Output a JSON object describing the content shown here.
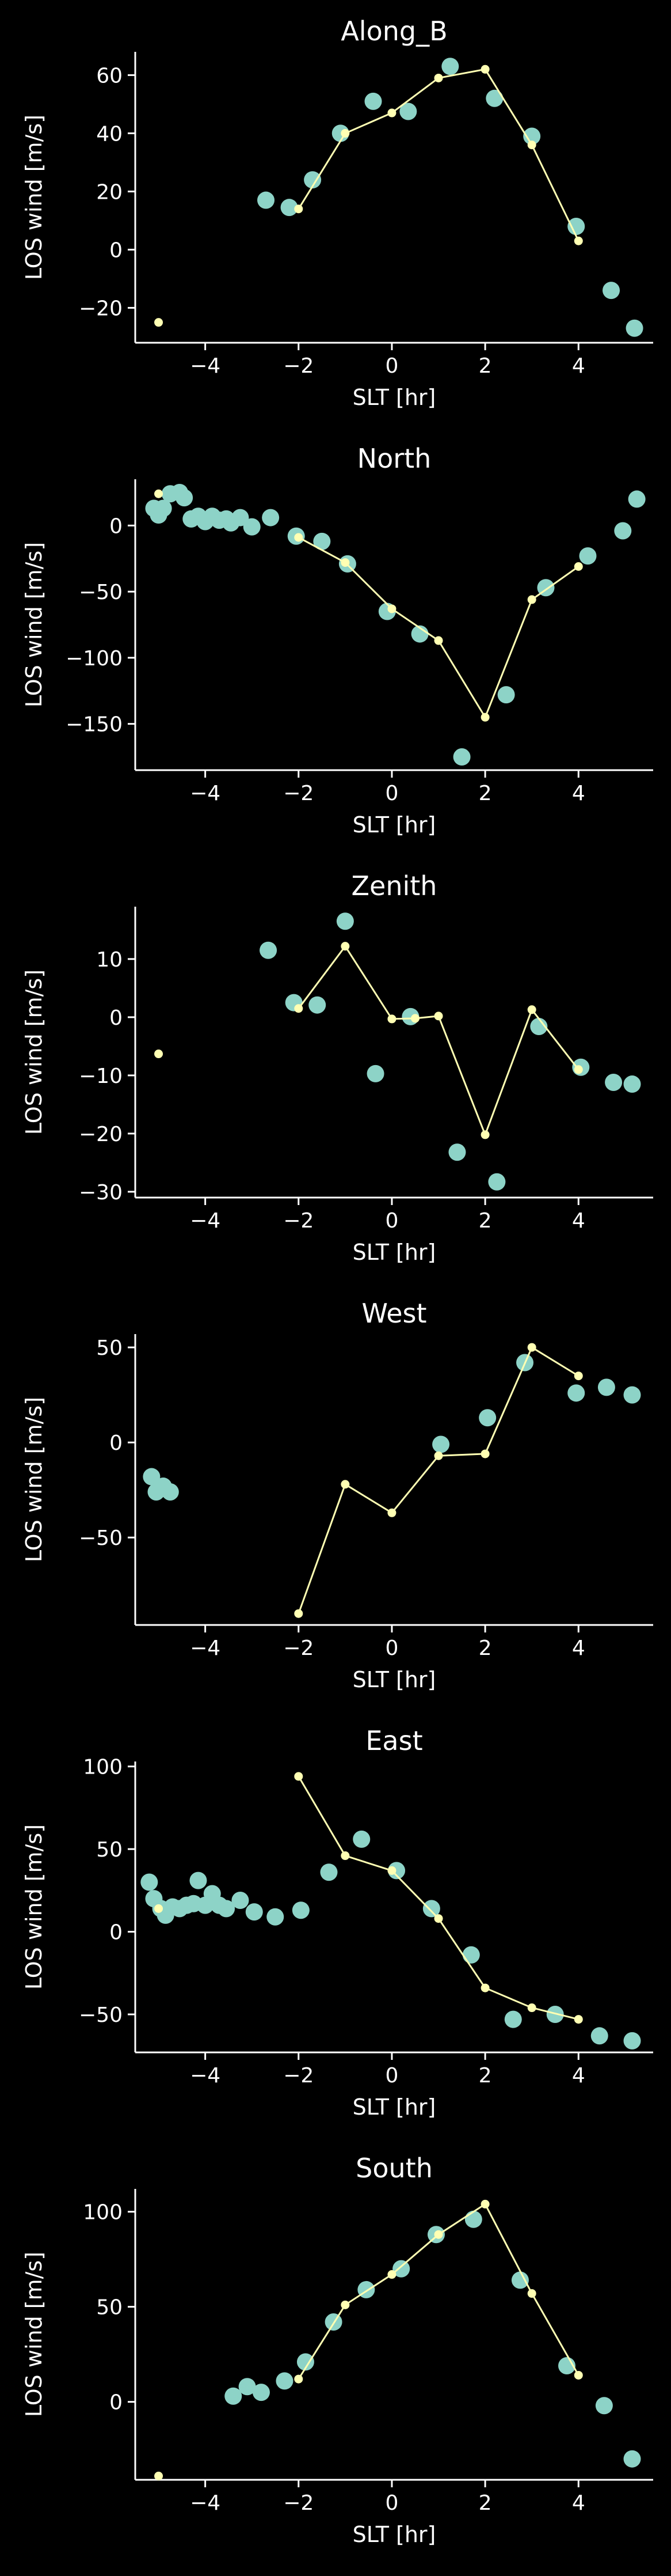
{
  "chart_data": [
    {
      "type": "scatter",
      "title": "Along_B",
      "xlabel": "SLT [hr]",
      "ylabel": "LOS wind [m/s]",
      "xlim": [
        -5.5,
        5.6
      ],
      "ylim": [
        -32,
        68
      ],
      "xticks": [
        -4,
        -2,
        0,
        2,
        4
      ],
      "yticks": [
        -20,
        0,
        20,
        40,
        60
      ],
      "scatter_series": {
        "color": "#8dd3c7",
        "points": [
          [
            -2.7,
            17
          ],
          [
            -2.2,
            14.5
          ],
          [
            -1.7,
            24
          ],
          [
            -1.1,
            40
          ],
          [
            -0.4,
            51
          ],
          [
            0.35,
            47.5
          ],
          [
            1.25,
            63
          ],
          [
            2.2,
            52
          ],
          [
            3.0,
            39
          ],
          [
            3.95,
            8
          ],
          [
            4.7,
            -14
          ],
          [
            5.2,
            -27
          ]
        ]
      },
      "line_series": {
        "color": "#ffffb3",
        "points": [
          [
            -2,
            14
          ],
          [
            -1,
            40
          ],
          [
            0,
            47
          ],
          [
            1,
            59
          ],
          [
            2,
            62
          ],
          [
            3,
            36
          ],
          [
            4,
            3
          ]
        ]
      },
      "extra_points": [
        [
          -5,
          -25
        ]
      ]
    },
    {
      "type": "scatter",
      "title": "North",
      "xlabel": "SLT [hr]",
      "ylabel": "LOS wind [m/s]",
      "xlim": [
        -5.5,
        5.6
      ],
      "ylim": [
        -185,
        35
      ],
      "xticks": [
        -4,
        -2,
        0,
        2,
        4
      ],
      "yticks": [
        -150,
        -100,
        -50,
        0
      ],
      "scatter_series": {
        "color": "#8dd3c7",
        "points": [
          [
            -5.1,
            13
          ],
          [
            -5.0,
            8
          ],
          [
            -4.9,
            13
          ],
          [
            -4.75,
            24
          ],
          [
            -4.55,
            25
          ],
          [
            -4.45,
            21
          ],
          [
            -4.3,
            5
          ],
          [
            -4.15,
            7
          ],
          [
            -4.0,
            3
          ],
          [
            -3.85,
            7
          ],
          [
            -3.7,
            4
          ],
          [
            -3.55,
            5
          ],
          [
            -3.45,
            2
          ],
          [
            -3.25,
            6
          ],
          [
            -3.0,
            -1
          ],
          [
            -2.6,
            6
          ],
          [
            -2.05,
            -8
          ],
          [
            -1.5,
            -12
          ],
          [
            -0.95,
            -29
          ],
          [
            -0.1,
            -65
          ],
          [
            0.6,
            -82
          ],
          [
            1.5,
            -175
          ],
          [
            2.45,
            -128
          ],
          [
            3.3,
            -47
          ],
          [
            4.2,
            -23
          ],
          [
            4.95,
            -4
          ],
          [
            5.25,
            20
          ]
        ]
      },
      "line_series": {
        "color": "#ffffb3",
        "points": [
          [
            -2,
            -9
          ],
          [
            -1,
            -28
          ],
          [
            0,
            -63
          ],
          [
            1,
            -87
          ],
          [
            2,
            -145
          ],
          [
            3,
            -56
          ],
          [
            4,
            -31
          ]
        ]
      },
      "extra_points": [
        [
          -5,
          24
        ]
      ]
    },
    {
      "type": "scatter",
      "title": "Zenith",
      "xlabel": "SLT [hr]",
      "ylabel": "LOS wind [m/s]",
      "xlim": [
        -5.5,
        5.6
      ],
      "ylim": [
        -31,
        19
      ],
      "xticks": [
        -4,
        -2,
        0,
        2,
        4
      ],
      "yticks": [
        -30,
        -20,
        -10,
        0,
        10
      ],
      "scatter_series": {
        "color": "#8dd3c7",
        "points": [
          [
            -2.65,
            11.5
          ],
          [
            -2.1,
            2.5
          ],
          [
            -1.6,
            2.1
          ],
          [
            -1.0,
            16.5
          ],
          [
            -0.35,
            -9.7
          ],
          [
            0.4,
            0.1
          ],
          [
            1.4,
            -23.2
          ],
          [
            2.25,
            -28.3
          ],
          [
            3.15,
            -1.6
          ],
          [
            4.05,
            -8.6
          ],
          [
            4.75,
            -11.2
          ],
          [
            5.15,
            -11.5
          ]
        ]
      },
      "line_series": {
        "color": "#ffffb3",
        "points": [
          [
            -2,
            1.5
          ],
          [
            -1,
            12.2
          ],
          [
            0,
            -0.3
          ],
          [
            0.5,
            -0.2
          ],
          [
            1,
            0.2
          ],
          [
            2,
            -20.2
          ],
          [
            3,
            1.3
          ],
          [
            4,
            -9
          ]
        ]
      },
      "extra_points": [
        [
          -5,
          -6.3
        ]
      ]
    },
    {
      "type": "scatter",
      "title": "West",
      "xlabel": "SLT [hr]",
      "ylabel": "LOS wind [m/s]",
      "xlim": [
        -5.5,
        5.6
      ],
      "ylim": [
        -96,
        57
      ],
      "xticks": [
        -4,
        -2,
        0,
        2,
        4
      ],
      "yticks": [
        -50,
        0,
        50
      ],
      "scatter_series": {
        "color": "#8dd3c7",
        "points": [
          [
            -5.15,
            -18
          ],
          [
            -5.05,
            -26
          ],
          [
            -4.9,
            -23
          ],
          [
            -4.75,
            -26
          ],
          [
            1.05,
            -1
          ],
          [
            2.05,
            13
          ],
          [
            2.85,
            42
          ],
          [
            3.95,
            26
          ],
          [
            4.6,
            29
          ],
          [
            5.15,
            25
          ]
        ]
      },
      "line_series": {
        "color": "#ffffb3",
        "points": [
          [
            -2,
            -90
          ],
          [
            -1,
            -22
          ],
          [
            0,
            -37
          ],
          [
            1,
            -7
          ],
          [
            2,
            -6
          ],
          [
            3,
            50
          ],
          [
            4,
            35
          ]
        ]
      },
      "extra_points": []
    },
    {
      "type": "scatter",
      "title": "East",
      "xlabel": "SLT [hr]",
      "ylabel": "LOS wind [m/s]",
      "xlim": [
        -5.5,
        5.6
      ],
      "ylim": [
        -73,
        103
      ],
      "xticks": [
        -4,
        -2,
        0,
        2,
        4
      ],
      "yticks": [
        -50,
        0,
        50,
        100
      ],
      "scatter_series": {
        "color": "#8dd3c7",
        "points": [
          [
            -5.2,
            30
          ],
          [
            -5.1,
            20
          ],
          [
            -4.95,
            14
          ],
          [
            -4.85,
            10
          ],
          [
            -4.7,
            15
          ],
          [
            -4.55,
            14
          ],
          [
            -4.4,
            16
          ],
          [
            -4.25,
            17
          ],
          [
            -4.15,
            31
          ],
          [
            -4.0,
            16
          ],
          [
            -3.85,
            23
          ],
          [
            -3.7,
            16
          ],
          [
            -3.55,
            14
          ],
          [
            -3.25,
            19
          ],
          [
            -2.95,
            12
          ],
          [
            -2.5,
            9
          ],
          [
            -1.95,
            13
          ],
          [
            -1.35,
            36
          ],
          [
            -0.65,
            56
          ],
          [
            0.1,
            37
          ],
          [
            0.85,
            14
          ],
          [
            1.7,
            -14
          ],
          [
            2.6,
            -53
          ],
          [
            3.5,
            -50
          ],
          [
            4.45,
            -63
          ],
          [
            5.15,
            -66
          ]
        ]
      },
      "line_series": {
        "color": "#ffffb3",
        "points": [
          [
            -2,
            94
          ],
          [
            -1,
            46
          ],
          [
            0,
            37
          ],
          [
            1,
            8
          ],
          [
            2,
            -34
          ],
          [
            3,
            -46
          ],
          [
            4,
            -53
          ]
        ]
      },
      "extra_points": [
        [
          -5,
          14
        ]
      ]
    },
    {
      "type": "scatter",
      "title": "South",
      "xlabel": "SLT [hr]",
      "ylabel": "LOS wind [m/s]",
      "xlim": [
        -5.5,
        5.6
      ],
      "ylim": [
        -41,
        112
      ],
      "xticks": [
        -4,
        -2,
        0,
        2,
        4
      ],
      "yticks": [
        0,
        50,
        100
      ],
      "scatter_series": {
        "color": "#8dd3c7",
        "points": [
          [
            -3.4,
            3
          ],
          [
            -3.1,
            8
          ],
          [
            -2.8,
            5
          ],
          [
            -2.3,
            11
          ],
          [
            -1.85,
            21
          ],
          [
            -1.25,
            42
          ],
          [
            -0.55,
            59
          ],
          [
            0.2,
            70
          ],
          [
            0.95,
            88
          ],
          [
            1.75,
            96
          ],
          [
            2.75,
            64
          ],
          [
            3.75,
            19
          ],
          [
            4.55,
            -2
          ],
          [
            5.15,
            -30
          ]
        ]
      },
      "line_series": {
        "color": "#ffffb3",
        "points": [
          [
            -2,
            12
          ],
          [
            -1,
            51
          ],
          [
            0,
            67
          ],
          [
            1,
            88
          ],
          [
            2,
            104
          ],
          [
            3,
            57
          ],
          [
            4,
            14
          ]
        ]
      },
      "extra_points": [
        [
          -5,
          -39
        ]
      ]
    }
  ]
}
